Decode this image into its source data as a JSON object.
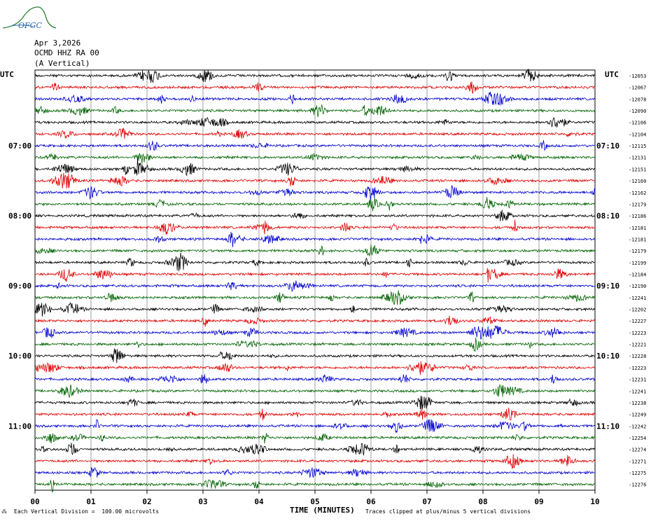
{
  "logo": {
    "text": "OFGC",
    "icon": "seismograph-logo-icon",
    "color": "#2e7d32"
  },
  "header": {
    "date": "Apr 3,2026",
    "station": "OCMD HHZ RA 00",
    "component": "(A Vertical)"
  },
  "chart_data": {
    "type": "line",
    "title": "",
    "xlabel": "TIME (MINUTES)",
    "ylabel": "",
    "xlim": [
      0,
      10
    ],
    "x_ticks": [
      "00",
      "01",
      "02",
      "03",
      "04",
      "05",
      "06",
      "07",
      "08",
      "09",
      "10"
    ],
    "left_label_top": "UTC",
    "right_label_top": "UTC",
    "left_time_labels": [
      {
        "row": 6,
        "label": "07:00"
      },
      {
        "row": 12,
        "label": "08:00"
      },
      {
        "row": 18,
        "label": "09:00"
      },
      {
        "row": 24,
        "label": "10:00"
      },
      {
        "row": 30,
        "label": "11:00"
      }
    ],
    "right_time_labels": [
      {
        "row": 6,
        "label": "07:10"
      },
      {
        "row": 12,
        "label": "08:10"
      },
      {
        "row": 18,
        "label": "09:10"
      },
      {
        "row": 24,
        "label": "10:10"
      },
      {
        "row": 30,
        "label": "11:10"
      }
    ],
    "trace_colors": [
      "#000000",
      "#e00000",
      "#0000d0",
      "#006400"
    ],
    "trace_offsets": [
      -12053,
      -12067,
      -12078,
      -12090,
      -12106,
      -12104,
      -12115,
      -12131,
      -12151,
      -12160,
      -12162,
      -12179,
      -12186,
      -12181,
      -12181,
      -12179,
      -12199,
      -12184,
      -12190,
      -12241,
      -12202,
      -12227,
      -12223,
      -12221,
      -12228,
      -12223,
      -12231,
      -12241,
      -12238,
      -12249,
      -12242,
      -12254,
      -12274,
      -12271,
      -12275,
      -12276
    ]
  },
  "footer": {
    "scale": "Each Vertical Division =  100.00 microvolts",
    "clip": "Traces clipped at plus/minus 5 vertical divisions"
  }
}
